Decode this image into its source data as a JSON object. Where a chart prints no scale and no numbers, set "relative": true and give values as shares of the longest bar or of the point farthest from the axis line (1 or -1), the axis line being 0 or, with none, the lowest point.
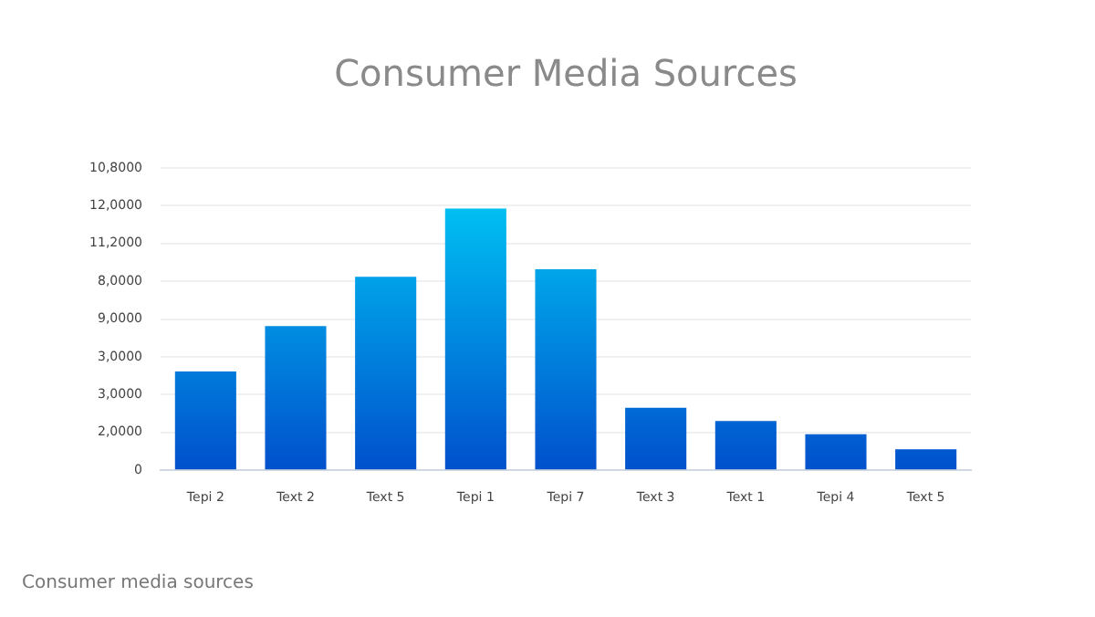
{
  "chart_data": {
    "type": "bar",
    "title": "Consumer Media Sources",
    "categories": [
      "Tepi 2",
      "Text 2",
      "Text 5",
      "Tepi 1",
      "Tepi 7",
      "Text 3",
      "Text 1",
      "Tepi 4",
      "Text 5"
    ],
    "values": [
      0.377,
      0.551,
      0.739,
      1,
      0.768,
      0.239,
      0.188,
      0.138,
      0.08
    ],
    "relative": true,
    "color": "#0050cc",
    "grid": "y",
    "annotations": [
      "0",
      "2,0000",
      "3,0000",
      "3,0000",
      "9,0000",
      "8,0000",
      "11,2000",
      "12,0000",
      "10,8000",
      "Consumer media sources"
    ]
  }
}
